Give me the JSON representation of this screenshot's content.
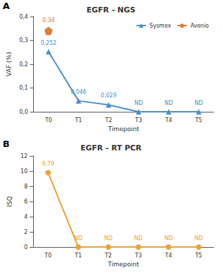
{
  "chart_data": [
    {
      "type": "line",
      "title": "EGFR - NGS",
      "annotations": [
        "A"
      ],
      "x_label": "Timepoint",
      "y_label": "VAF (%)",
      "categories": [
        "T0",
        "T1",
        "T2",
        "T3",
        "T4",
        "T5"
      ],
      "series": [
        {
          "name": "Sysmex",
          "color": "#4a8fcb",
          "marker": "triangle",
          "line_style": "solid",
          "values": [
            0.252,
            0.046,
            0.029,
            0,
            0,
            0
          ],
          "value_labels": [
            "0,252",
            "0,046",
            "0,029",
            "ND",
            "ND",
            "ND"
          ]
        },
        {
          "name": "Avenio",
          "color": "#e07b39",
          "marker": "pentagon",
          "line_style": "solid",
          "values": [
            0.34,
            null,
            null,
            null,
            null,
            null
          ],
          "value_labels": [
            "0,34",
            null,
            null,
            null,
            null,
            null
          ]
        }
      ],
      "ylim": [
        0,
        0.4
      ],
      "yticks": [
        {
          "value": 0,
          "label": "0,0"
        },
        {
          "value": 0.1,
          "label": "0,1"
        },
        {
          "value": 0.2,
          "label": "0,2"
        },
        {
          "value": 0.3,
          "label": "0,3"
        },
        {
          "value": 0.4,
          "label": "0,4"
        }
      ],
      "grid": false,
      "legend": "upper right",
      "data_labels": true
    },
    {
      "type": "line",
      "title": "EGFR - RT PCR",
      "annotations": [
        "B"
      ],
      "x_label": "Timepoint",
      "y_label": "ISQ",
      "categories": [
        "T0",
        "T1",
        "T2",
        "T3",
        "T4",
        "T5"
      ],
      "series": [
        {
          "name": "RT PCR",
          "color": "#f0a030",
          "marker": "circle",
          "line_style": "solid",
          "values": [
            9.79,
            0,
            0,
            0,
            0,
            0
          ],
          "value_labels": [
            "9,79",
            "ND",
            "ND",
            "ND",
            "ND",
            "ND"
          ]
        }
      ],
      "ylim": [
        0,
        12
      ],
      "yticks": [
        0,
        2,
        4,
        6,
        8,
        10,
        12
      ],
      "grid": false,
      "data_labels": true
    }
  ]
}
